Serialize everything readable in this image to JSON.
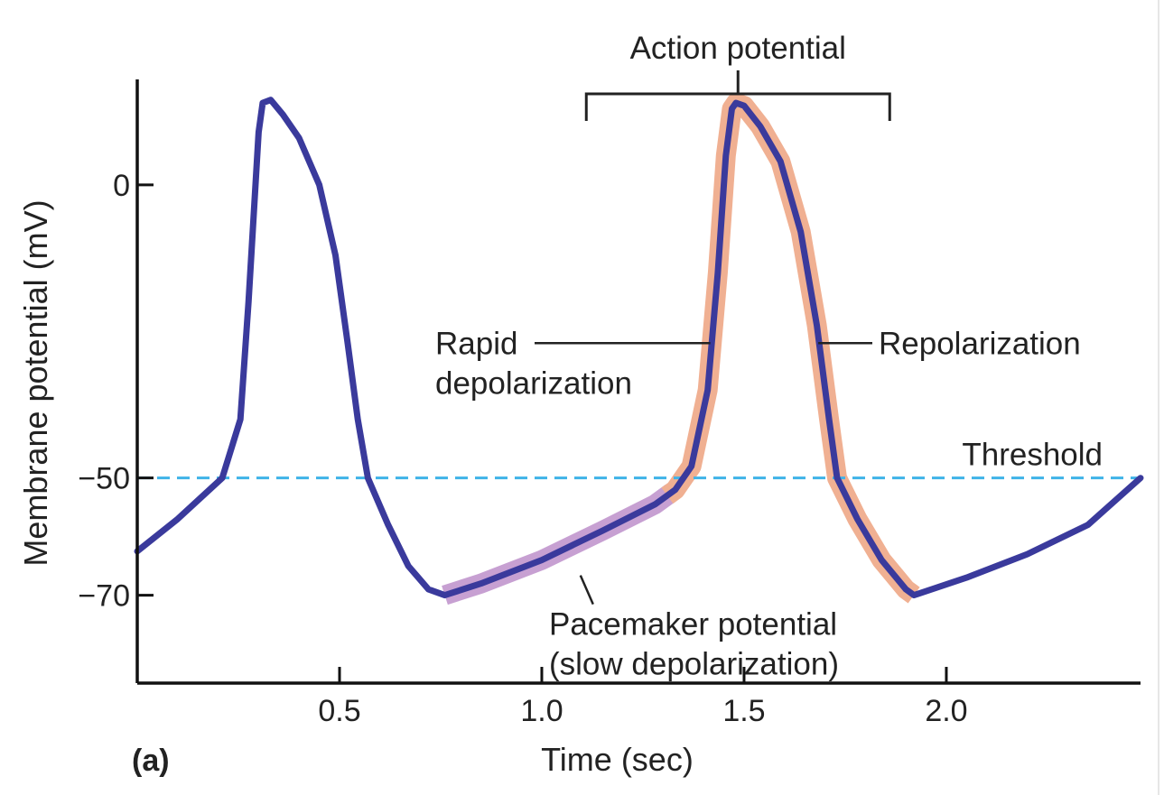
{
  "chart_data": {
    "type": "line",
    "panel_label": "(a)",
    "xlabel": "Time (sec)",
    "ylabel": "Membrane potential (mV)",
    "xlim": [
      0,
      2.48
    ],
    "ylim": [
      -85,
      18
    ],
    "x_ticks": [
      {
        "value": 0.5,
        "label": "0.5"
      },
      {
        "value": 1.0,
        "label": "1.0"
      },
      {
        "value": 1.5,
        "label": "1.5"
      },
      {
        "value": 2.0,
        "label": "2.0"
      }
    ],
    "y_ticks": [
      {
        "value": 0,
        "label": "0"
      },
      {
        "value": -50,
        "label": "−50"
      },
      {
        "value": -70,
        "label": "−70"
      }
    ],
    "threshold": {
      "value": -50,
      "label": "Threshold",
      "color": "#3fb3e8"
    },
    "series": [
      {
        "color": "#3a3a9c",
        "x": [
          0,
          0.1,
          0.21,
          0.255,
          0.275,
          0.3,
          0.31,
          0.33,
          0.36,
          0.4,
          0.45,
          0.49,
          0.52,
          0.545,
          0.57,
          0.62,
          0.67,
          0.72,
          0.76,
          0.85,
          1.0,
          1.15,
          1.28,
          1.33,
          1.37,
          1.41,
          1.435,
          1.455,
          1.47,
          1.48,
          1.5,
          1.54,
          1.59,
          1.64,
          1.68,
          1.71,
          1.73,
          1.78,
          1.84,
          1.9,
          1.92,
          2.05,
          2.2,
          2.35,
          2.48
        ],
        "y": [
          -62.5,
          -57,
          -50,
          -40,
          -20,
          9,
          14,
          14.5,
          12,
          8,
          0,
          -12,
          -27,
          -40,
          -50,
          -58,
          -65,
          -69,
          -70,
          -68,
          -64,
          -59,
          -54.5,
          -52,
          -48,
          -35,
          -15,
          5,
          13,
          14,
          13.5,
          10,
          4,
          -8,
          -24,
          -40,
          -50,
          -57,
          -64,
          -69,
          -70,
          -67,
          -63,
          -58,
          -50
        ]
      }
    ],
    "highlights": [
      {
        "name": "pacemaker",
        "color": "#c7a0d2",
        "x_start": 0.76,
        "x_end": 1.32
      },
      {
        "name": "action",
        "color": "#f0b092",
        "x_start": 1.31,
        "x_end": 1.92
      }
    ],
    "annotations": {
      "action_potential": "Action potential",
      "action_bracket": [
        1.11,
        1.86
      ],
      "rapid_line1": "Rapid",
      "rapid_line2": "depolarization",
      "rapid_pointer": {
        "x": 1.43,
        "y": -27
      },
      "repolarization": "Repolarization",
      "repol_pointer": {
        "x": 1.67,
        "y": -27
      },
      "pacemaker_line1": "Pacemaker potential",
      "pacemaker_line2": "(slow depolarization)",
      "pacemaker_pointer": {
        "x": 1.1,
        "y": -66
      }
    }
  }
}
